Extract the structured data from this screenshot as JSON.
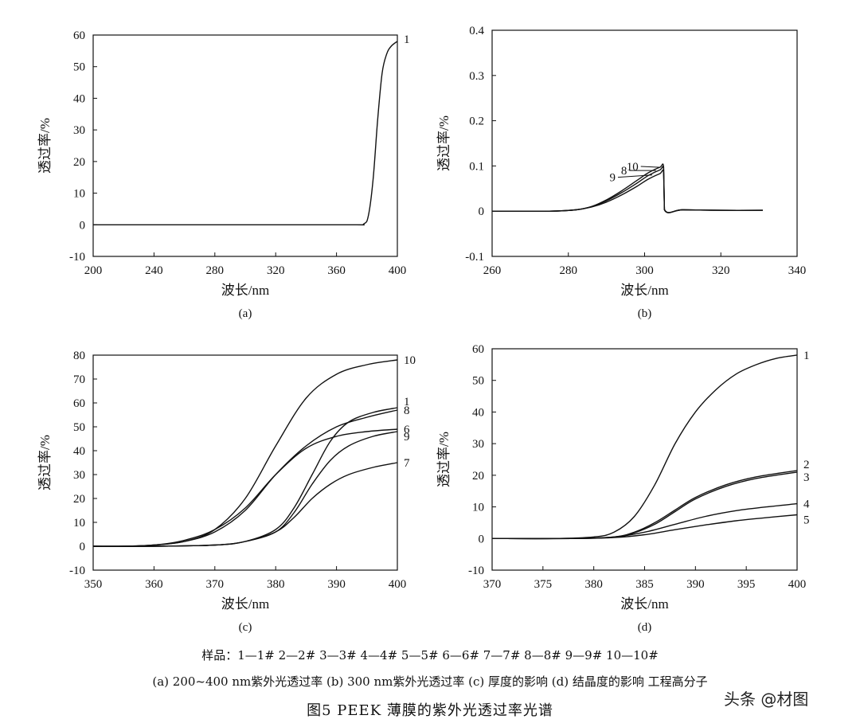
{
  "chart_data": [
    {
      "id": "a",
      "type": "line",
      "subtitle": "(a)",
      "xlabel": "波长/nm",
      "ylabel": "透过率/%",
      "xlim": [
        200,
        400
      ],
      "ylim": [
        -10,
        60
      ],
      "xticks": [
        200,
        240,
        280,
        320,
        360,
        400
      ],
      "yticks": [
        -10,
        0,
        10,
        20,
        30,
        40,
        50,
        60
      ],
      "series": [
        {
          "name": "1",
          "x": [
            200,
            300,
            370,
            378,
            381,
            384,
            387,
            390,
            393,
            396,
            400
          ],
          "y": [
            0,
            0,
            0,
            0.3,
            3,
            14,
            33,
            48,
            54,
            56.5,
            58
          ]
        }
      ]
    },
    {
      "id": "b",
      "type": "line",
      "subtitle": "(b)",
      "xlabel": "波长/nm",
      "ylabel": "透过率/%",
      "xlim": [
        260,
        340
      ],
      "ylim": [
        -0.1,
        0.4
      ],
      "xticks": [
        260,
        280,
        300,
        320,
        340
      ],
      "yticks": [
        -0.1,
        0,
        0.1,
        0.2,
        0.3,
        0.4
      ],
      "series": [
        {
          "name": "10",
          "x": [
            260,
            275,
            282,
            286,
            290,
            294,
            298,
            301,
            304,
            305,
            305.2,
            310,
            320,
            331
          ],
          "y": [
            0,
            0,
            0.003,
            0.01,
            0.025,
            0.045,
            0.068,
            0.085,
            0.097,
            0.097,
            0.004,
            0.003,
            0.002,
            0.002
          ]
        },
        {
          "name": "8",
          "x": [
            260,
            275,
            282,
            286,
            290,
            294,
            298,
            301,
            304,
            305,
            305.2,
            310,
            320,
            331
          ],
          "y": [
            0,
            0,
            0.003,
            0.01,
            0.023,
            0.041,
            0.062,
            0.079,
            0.091,
            0.092,
            0.003,
            0.003,
            0.002,
            0.002
          ]
        },
        {
          "name": "9",
          "x": [
            260,
            275,
            282,
            286,
            290,
            294,
            298,
            301,
            304,
            305,
            305.2,
            310,
            320,
            331
          ],
          "y": [
            0,
            0,
            0.003,
            0.009,
            0.02,
            0.036,
            0.055,
            0.071,
            0.083,
            0.085,
            0.003,
            0.003,
            0.002,
            0.002
          ]
        }
      ],
      "leaders": [
        {
          "label": "10",
          "x": 304,
          "y": 0.097,
          "lx": 299,
          "ly": 0.099
        },
        {
          "label": "8",
          "x": 303,
          "y": 0.09,
          "lx": 296,
          "ly": 0.09
        },
        {
          "label": "9",
          "x": 302,
          "y": 0.08,
          "lx": 293,
          "ly": 0.075
        }
      ]
    },
    {
      "id": "c",
      "type": "line",
      "subtitle": "(c)",
      "xlabel": "波长/nm",
      "ylabel": "透过率/%",
      "xlim": [
        350,
        400
      ],
      "ylim": [
        -10,
        80
      ],
      "xticks": [
        350,
        360,
        370,
        380,
        390,
        400
      ],
      "yticks": [
        -10,
        0,
        10,
        20,
        30,
        40,
        50,
        60,
        70,
        80
      ],
      "series": [
        {
          "name": "10",
          "x": [
            350,
            355,
            360,
            365,
            370,
            375,
            380,
            385,
            390,
            395,
            400
          ],
          "y": [
            0,
            0,
            0.5,
            2,
            7,
            20,
            42,
            62,
            72,
            76,
            78
          ]
        },
        {
          "name": "1",
          "x": [
            350,
            360,
            370,
            375,
            380,
            383,
            386,
            389,
            392,
            396,
            400
          ],
          "y": [
            0,
            0,
            0.5,
            2,
            7,
            16,
            30,
            44,
            52,
            56,
            58
          ]
        },
        {
          "name": "8",
          "x": [
            350,
            355,
            360,
            365,
            370,
            375,
            380,
            385,
            390,
            395,
            400
          ],
          "y": [
            0,
            0,
            0.5,
            2,
            6,
            15,
            30,
            42,
            50,
            54,
            57
          ]
        },
        {
          "name": "6",
          "x": [
            350,
            355,
            360,
            365,
            370,
            375,
            380,
            385,
            390,
            395,
            400
          ],
          "y": [
            0,
            0,
            0.5,
            2.5,
            7,
            16,
            30,
            41,
            46,
            48,
            49
          ]
        },
        {
          "name": "9",
          "x": [
            350,
            360,
            370,
            375,
            380,
            383,
            386,
            389,
            392,
            396,
            400
          ],
          "y": [
            0,
            0,
            0.5,
            2,
            6,
            14,
            26,
            36,
            42,
            46,
            48
          ]
        },
        {
          "name": "7",
          "x": [
            350,
            360,
            370,
            375,
            380,
            383,
            386,
            389,
            392,
            396,
            400
          ],
          "y": [
            0,
            0,
            0.5,
            2,
            6,
            12,
            20,
            26,
            30,
            33,
            35
          ]
        }
      ],
      "end_labels": [
        "10",
        "1",
        "8",
        "6",
        "9",
        "7"
      ]
    },
    {
      "id": "d",
      "type": "line",
      "subtitle": "(d)",
      "xlabel": "波长/nm",
      "ylabel": "透过率/%",
      "xlim": [
        370,
        400
      ],
      "ylim": [
        -10,
        60
      ],
      "xticks": [
        370,
        375,
        380,
        385,
        390,
        395,
        400
      ],
      "yticks": [
        -10,
        0,
        10,
        20,
        30,
        40,
        50,
        60
      ],
      "series": [
        {
          "name": "1",
          "x": [
            370,
            376,
            380,
            382,
            384,
            386,
            388,
            390,
            392,
            394,
            396,
            398,
            400
          ],
          "y": [
            0,
            0,
            0.5,
            2,
            7,
            17,
            30,
            40,
            47,
            52,
            55,
            57,
            58
          ]
        },
        {
          "name": "2",
          "x": [
            370,
            378,
            382,
            384,
            386,
            388,
            390,
            393,
            396,
            400
          ],
          "y": [
            0,
            0,
            0.5,
            2,
            5,
            9,
            13,
            17,
            19.5,
            21.5
          ]
        },
        {
          "name": "3",
          "x": [
            370,
            378,
            382,
            384,
            386,
            388,
            390,
            393,
            396,
            400
          ],
          "y": [
            0,
            0,
            0.4,
            1.8,
            4.5,
            8.5,
            12.5,
            16.5,
            19,
            21
          ]
        },
        {
          "name": "4",
          "x": [
            370,
            378,
            382,
            385,
            388,
            391,
            394,
            397,
            400
          ],
          "y": [
            0,
            0,
            0.5,
            2,
            4.5,
            7,
            8.8,
            10,
            11
          ]
        },
        {
          "name": "5",
          "x": [
            370,
            378,
            382,
            385,
            388,
            391,
            394,
            397,
            400
          ],
          "y": [
            0,
            0,
            0.3,
            1.2,
            2.8,
            4.3,
            5.6,
            6.6,
            7.5
          ]
        }
      ],
      "end_labels": [
        "1",
        "2",
        "3",
        "4",
        "5"
      ]
    }
  ],
  "captions": {
    "legend": "样品：1—1# 2—2# 3—3# 4—4# 5—5# 6—6# 7—7# 8—8# 9—9# 10—10#",
    "subcaptions": "(a) 200~400 nm紫外光透过率 (b) 300 nm紫外光透过率 (c) 厚度的影响 (d) 结晶度的影响 工程高分子",
    "title": "图5   PEEK 薄膜的紫外光透过率光谱",
    "watermark": "头条 @材图"
  }
}
